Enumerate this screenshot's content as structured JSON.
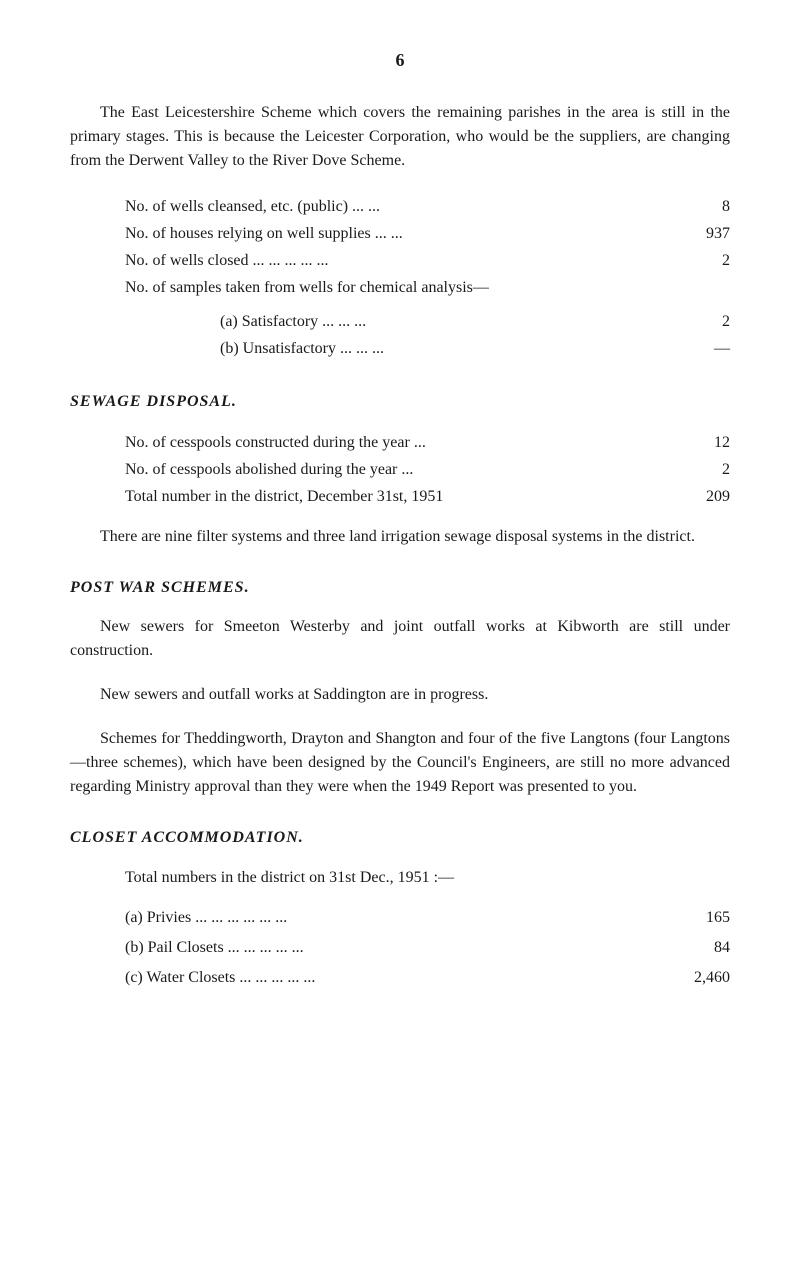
{
  "pageNumber": "6",
  "intro": "The East Leicestershire Scheme which covers the remaining parishes in the area is still in the primary stages. This is because the Leicester Corporation, who would be the suppliers, are changing from the Derwent Valley to the River Dove Scheme.",
  "wellsData": {
    "rows": [
      {
        "label": "No. of wells cleansed, etc. (public)      ...   ...",
        "value": "8"
      },
      {
        "label": "No. of houses relying on well supplies   ...   ...",
        "value": "937"
      },
      {
        "label": "No. of wells closed   ...      ...      ...      ...      ...",
        "value": "2"
      }
    ],
    "samplesText": "No. of samples taken from wells for chemical analysis—",
    "subRows": [
      {
        "label": "(a)   Satisfactory         ...      ...      ...",
        "value": "2"
      },
      {
        "label": "(b)   Unsatisfactory   ...      ...      ...",
        "value": "—"
      }
    ]
  },
  "sewageHeading": "SEWAGE DISPOSAL.",
  "sewageData": {
    "rows": [
      {
        "label": "No. of cesspools constructed during the year   ...",
        "value": "12"
      },
      {
        "label": "No. of cesspools abolished during the year        ...",
        "value": "2"
      },
      {
        "label": "Total number in the district, December 31st, 1951",
        "value": "209"
      }
    ]
  },
  "sewagePara": "There are nine filter systems and three land irrigation sewage disposal systems in the district.",
  "postWarHeading": "POST WAR SCHEMES.",
  "postWarPara1": "New sewers for Smeeton Westerby and joint outfall works at Kibworth are still under construction.",
  "postWarPara2": "New sewers and outfall works at Saddington are in progress.",
  "postWarPara3": "Schemes for Theddingworth, Drayton and Shangton and four of the five Langtons (four Langtons—three schemes), which have been designed by the Council's Engineers, are still no more advanced regarding Ministry approval than they were when the 1949 Report was presented to you.",
  "closetHeading": "CLOSET ACCOMMODATION.",
  "closetIntro": "Total numbers in the district on 31st Dec., 1951 :—",
  "closetData": {
    "rows": [
      {
        "label": "(a)   Privies      ...      ...      ...      ...      ...      ...",
        "value": "165"
      },
      {
        "label": "(b)   Pail Closets      ...      ...      ...      ...      ...",
        "value": "84"
      },
      {
        "label": "(c)   Water Closets   ...      ...      ...      ...      ...",
        "value": "2,460"
      }
    ]
  }
}
